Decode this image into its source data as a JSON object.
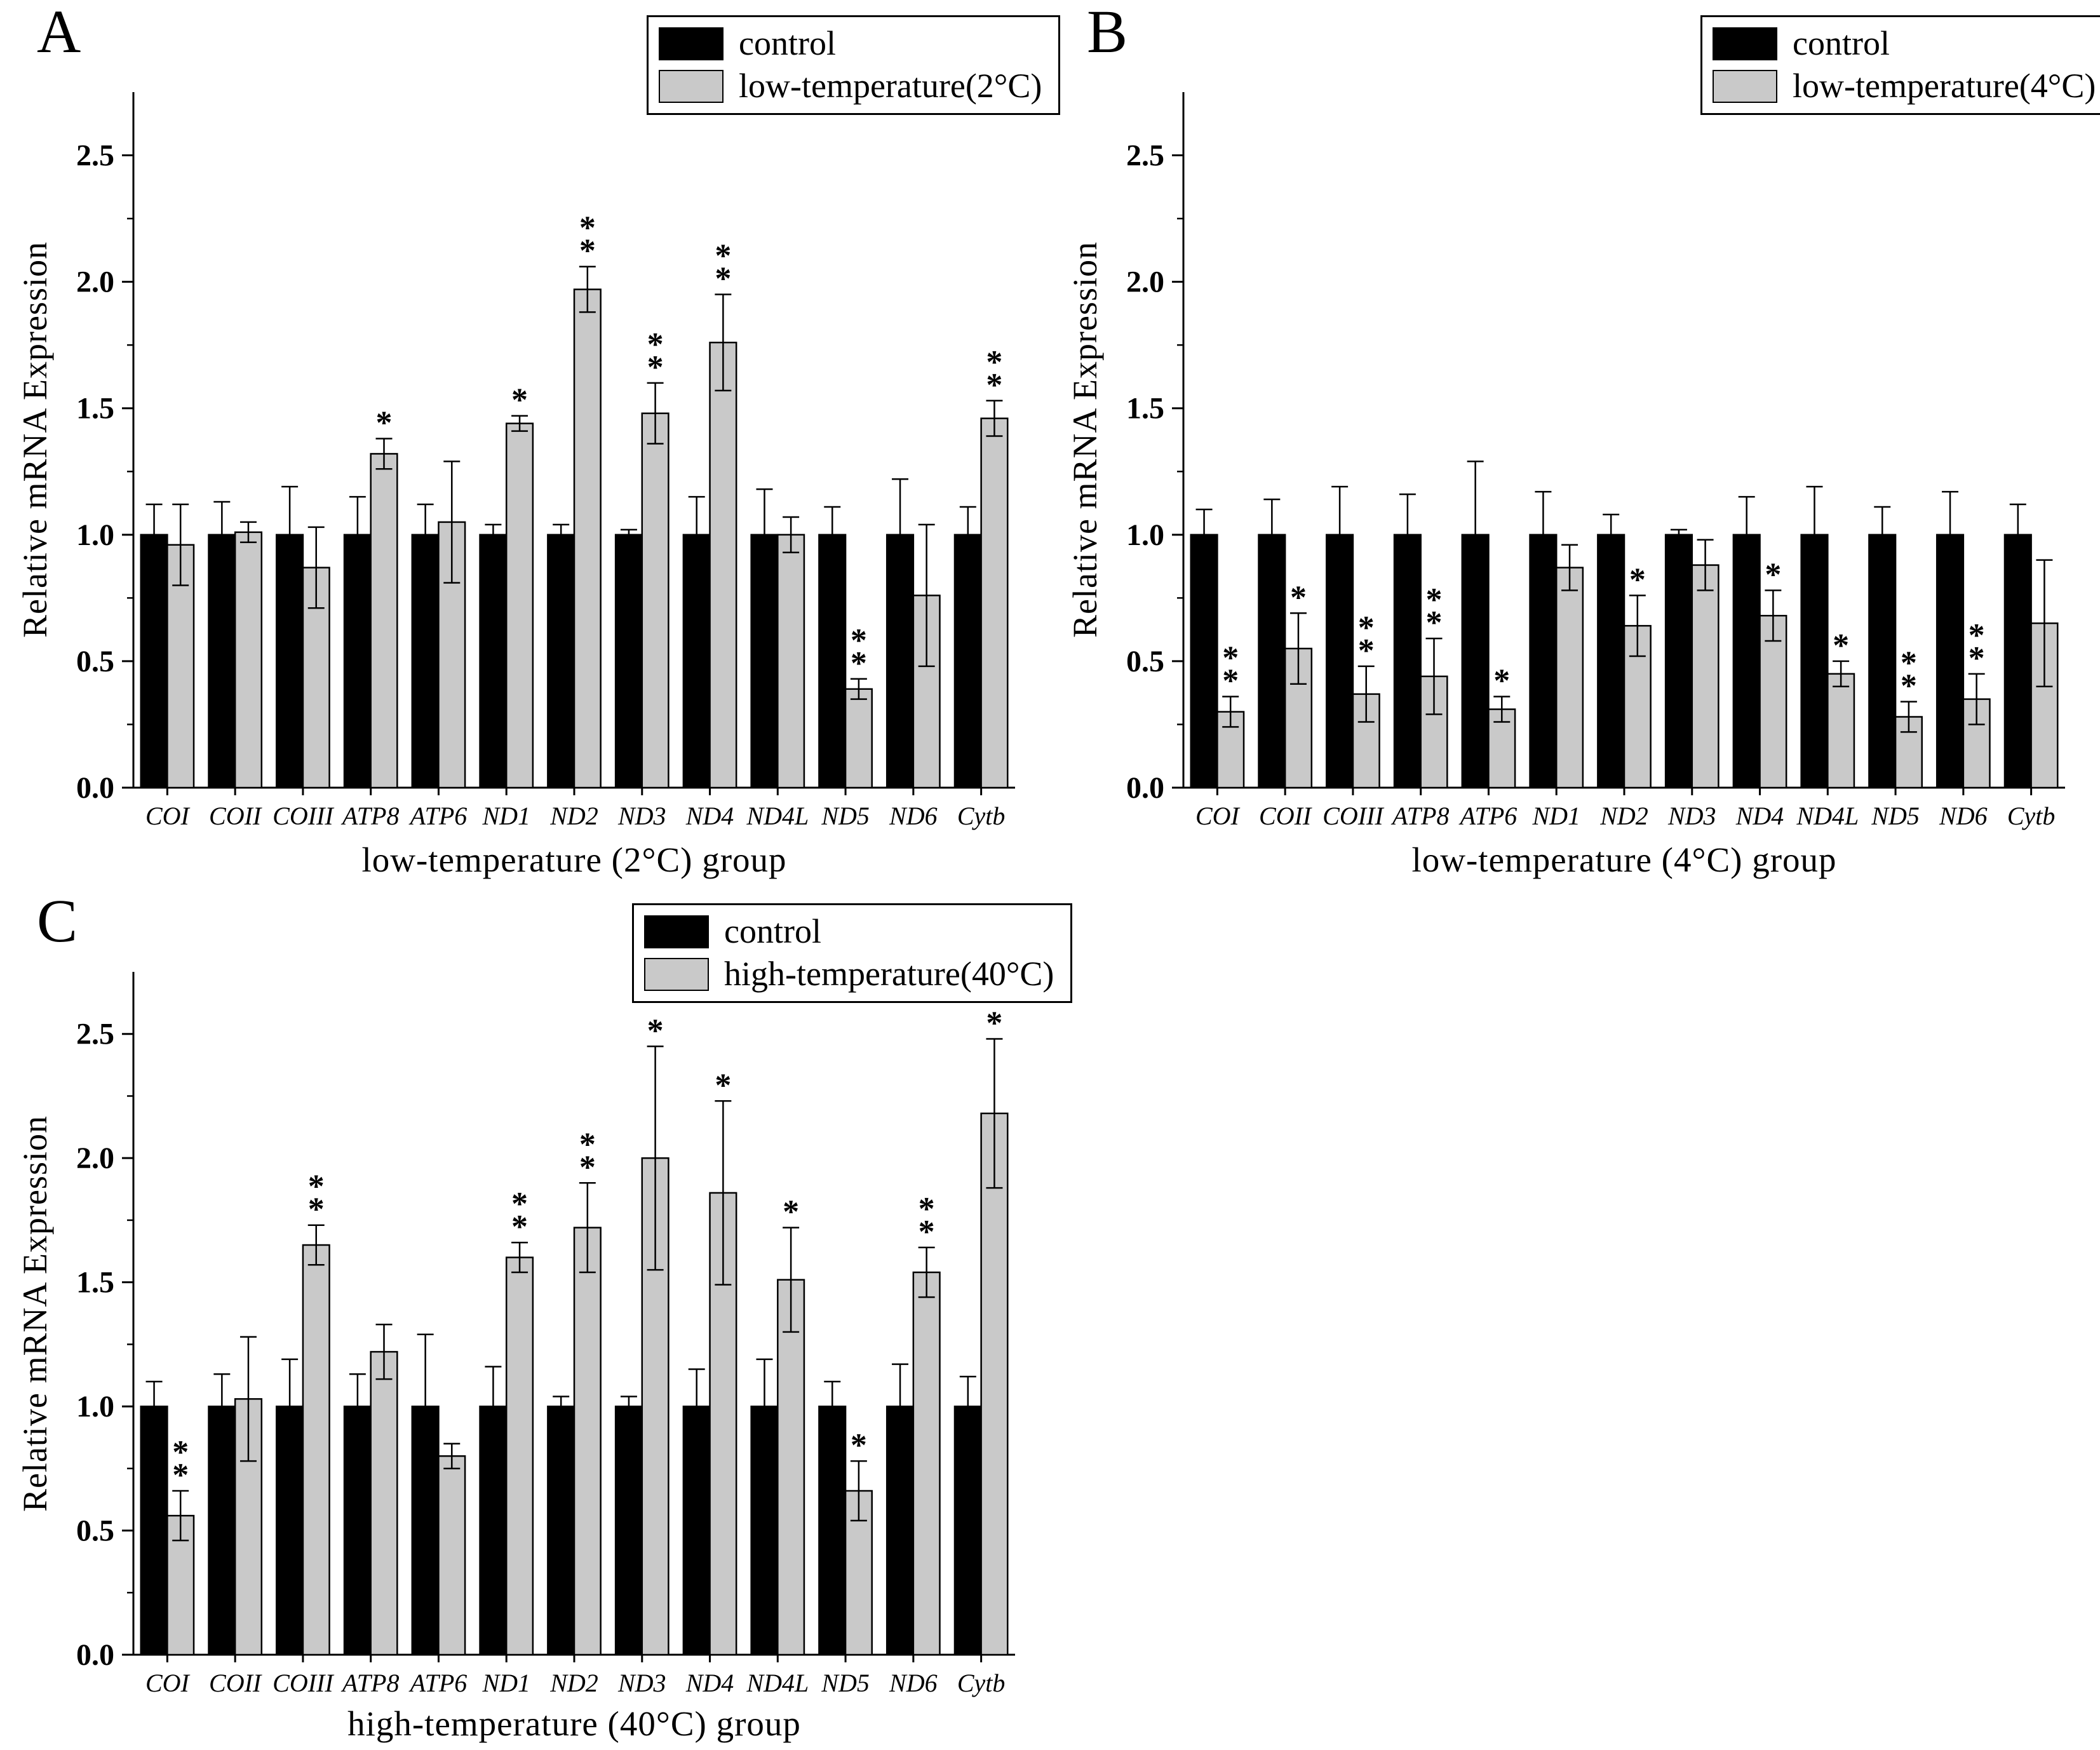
{
  "colors": {
    "control": "#000000",
    "treatment": "#c9c9c9",
    "axis": "#000000",
    "background": "#ffffff"
  },
  "chart_data": [
    {
      "type": "bar",
      "panel_label": "A",
      "xlabel": "low-temperature (2°C) group",
      "ylabel": "Relative mRNA Expression",
      "ylim": [
        0,
        2.75
      ],
      "yticks": [
        0,
        0.5,
        1,
        1.5,
        2,
        2.5
      ],
      "ytick_labels": [
        "0.0",
        "0.5",
        "1.0",
        "1.5",
        "2.0",
        "2.5"
      ],
      "grid": false,
      "legend_position": "top-center",
      "categories": [
        "COI",
        "COII",
        "COIII",
        "ATP8",
        "ATP6",
        "ND1",
        "ND2",
        "ND3",
        "ND4",
        "ND4L",
        "ND5",
        "ND6",
        "Cytb"
      ],
      "series": [
        {
          "name": "control",
          "color": "#000000",
          "values": [
            1,
            1,
            1,
            1,
            1,
            1,
            1,
            1,
            1,
            1,
            1,
            1,
            1
          ],
          "errors": [
            0.12,
            0.13,
            0.19,
            0.15,
            0.12,
            0.04,
            0.04,
            0.02,
            0.15,
            0.18,
            0.11,
            0.22,
            0.11
          ]
        },
        {
          "name": "low-temperature(2°C)",
          "color": "#c9c9c9",
          "values": [
            0.96,
            1.01,
            0.87,
            1.32,
            1.05,
            1.44,
            1.97,
            1.48,
            1.76,
            1.0,
            0.39,
            0.76,
            1.46
          ],
          "errors": [
            0.16,
            0.04,
            0.16,
            0.06,
            0.24,
            0.03,
            0.09,
            0.12,
            0.19,
            0.07,
            0.04,
            0.28,
            0.07
          ],
          "significance": [
            "",
            "",
            "",
            "*",
            "",
            "*",
            "**",
            "**",
            "**",
            "",
            "**",
            "",
            "**"
          ]
        }
      ]
    },
    {
      "type": "bar",
      "panel_label": "B",
      "xlabel": "low-temperature (4°C) group",
      "ylabel": "Relative mRNA Expression",
      "ylim": [
        0,
        2.75
      ],
      "yticks": [
        0,
        0.5,
        1,
        1.5,
        2,
        2.5
      ],
      "ytick_labels": [
        "0.0",
        "0.5",
        "1.0",
        "1.5",
        "2.0",
        "2.5"
      ],
      "grid": false,
      "legend_position": "top-center",
      "categories": [
        "COI",
        "COII",
        "COIII",
        "ATP8",
        "ATP6",
        "ND1",
        "ND2",
        "ND3",
        "ND4",
        "ND4L",
        "ND5",
        "ND6",
        "Cytb"
      ],
      "series": [
        {
          "name": "control",
          "color": "#000000",
          "values": [
            1,
            1,
            1,
            1,
            1,
            1,
            1,
            1,
            1,
            1,
            1,
            1,
            1
          ],
          "errors": [
            0.1,
            0.14,
            0.19,
            0.16,
            0.29,
            0.17,
            0.08,
            0.02,
            0.15,
            0.19,
            0.11,
            0.17,
            0.12
          ]
        },
        {
          "name": "low-temperature(4°C)",
          "color": "#c9c9c9",
          "values": [
            0.3,
            0.55,
            0.37,
            0.44,
            0.31,
            0.87,
            0.64,
            0.88,
            0.68,
            0.45,
            0.28,
            0.35,
            0.65
          ],
          "errors": [
            0.06,
            0.14,
            0.11,
            0.15,
            0.05,
            0.09,
            0.12,
            0.1,
            0.1,
            0.05,
            0.06,
            0.1,
            0.25
          ],
          "significance": [
            "**",
            "*",
            "**",
            "**",
            "*",
            "",
            "*",
            "",
            "*",
            "*",
            "**",
            "**",
            ""
          ]
        }
      ]
    },
    {
      "type": "bar",
      "panel_label": "C",
      "xlabel": "high-temperature (40°C) group",
      "ylabel": "Relative mRNA Expression",
      "ylim": [
        0,
        2.75
      ],
      "yticks": [
        0,
        0.5,
        1,
        1.5,
        2,
        2.5
      ],
      "ytick_labels": [
        "0.0",
        "0.5",
        "1.0",
        "1.5",
        "2.0",
        "2.5"
      ],
      "grid": false,
      "legend_position": "top-center",
      "categories": [
        "COI",
        "COII",
        "COIII",
        "ATP8",
        "ATP6",
        "ND1",
        "ND2",
        "ND3",
        "ND4",
        "ND4L",
        "ND5",
        "ND6",
        "Cytb"
      ],
      "series": [
        {
          "name": "control",
          "color": "#000000",
          "values": [
            1,
            1,
            1,
            1,
            1,
            1,
            1,
            1,
            1,
            1,
            1,
            1,
            1
          ],
          "errors": [
            0.1,
            0.13,
            0.19,
            0.13,
            0.29,
            0.16,
            0.04,
            0.04,
            0.15,
            0.19,
            0.1,
            0.17,
            0.12
          ]
        },
        {
          "name": "high-temperature(40°C)",
          "color": "#c9c9c9",
          "values": [
            0.56,
            1.03,
            1.65,
            1.22,
            0.8,
            1.6,
            1.72,
            2.0,
            1.86,
            1.51,
            0.66,
            1.54,
            2.18
          ],
          "errors": [
            0.1,
            0.25,
            0.08,
            0.11,
            0.05,
            0.06,
            0.18,
            0.45,
            0.37,
            0.21,
            0.12,
            0.1,
            0.3
          ],
          "significance": [
            "**",
            "",
            "**",
            "",
            "",
            "**",
            "**",
            "*",
            "*",
            "*",
            "*",
            "**",
            "**"
          ]
        }
      ]
    }
  ]
}
